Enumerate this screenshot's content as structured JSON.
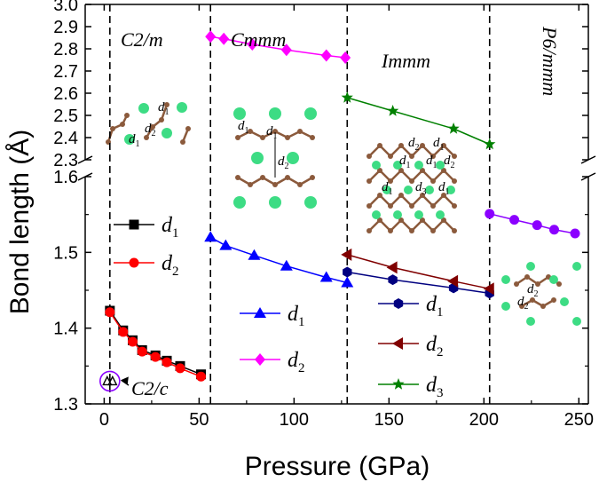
{
  "chart_data": {
    "type": "line",
    "xlabel": "Pressure (GPa)",
    "ylabel": "Bond length (Å)",
    "xlim": [
      -10,
      255
    ],
    "ylim_lower": [
      1.3,
      1.6
    ],
    "ylim_upper": [
      2.3,
      3.0
    ],
    "x_ticks": [
      "0",
      "50",
      "100",
      "150",
      "200",
      "250"
    ],
    "x_tick_values": [
      0,
      50,
      100,
      150,
      200,
      250
    ],
    "y_ticks_lower": [
      "1.3",
      "1.4",
      "1.5",
      "1.6"
    ],
    "y_tick_values_lower": [
      1.3,
      1.4,
      1.5,
      1.6
    ],
    "y_ticks_upper": [
      "2.3",
      "2.4",
      "2.5",
      "2.6",
      "2.7",
      "2.8",
      "2.9",
      "3.0"
    ],
    "y_tick_values_upper": [
      2.3,
      2.4,
      2.5,
      2.6,
      2.7,
      2.8,
      2.9,
      3.0
    ],
    "phase_boundaries": [
      3,
      56,
      128,
      203
    ],
    "phases": [
      {
        "label": "C2/m",
        "x": 22,
        "y": 2.92
      },
      {
        "label": "Cmmm",
        "x": 90,
        "y": 2.92
      },
      {
        "label": "Immm",
        "x": 163,
        "y": 2.72
      },
      {
        "label": "P6/mmm",
        "x": 230,
        "y": 2.9
      }
    ],
    "series": [
      {
        "name": "C2/m d1",
        "color": "#000000",
        "marker": "square",
        "x": [
          3,
          10,
          15,
          20,
          27,
          33,
          40,
          51
        ],
        "y": [
          1.423,
          1.397,
          1.384,
          1.371,
          1.364,
          1.357,
          1.35,
          1.339
        ]
      },
      {
        "name": "C2/m d2",
        "color": "#ff0000",
        "marker": "circle",
        "x": [
          3,
          10,
          15,
          20,
          27,
          33,
          40,
          51
        ],
        "y": [
          1.421,
          1.395,
          1.382,
          1.369,
          1.362,
          1.355,
          1.347,
          1.336
        ]
      },
      {
        "name": "Cmmm d1",
        "color": "#0000ff",
        "marker": "triangle",
        "x": [
          56,
          64,
          79,
          96,
          117,
          128
        ],
        "y": [
          1.52,
          1.509,
          1.496,
          1.482,
          1.467,
          1.46
        ]
      },
      {
        "name": "Cmmm d2",
        "color": "#ff00ff",
        "marker": "diamond",
        "x": [
          56,
          63,
          78,
          96,
          117,
          127
        ],
        "y": [
          2.855,
          2.845,
          2.82,
          2.795,
          2.77,
          2.76
        ]
      },
      {
        "name": "Immm d1",
        "color": "#000080",
        "marker": "hexagon",
        "x": [
          128,
          152,
          184,
          203
        ],
        "y": [
          1.474,
          1.464,
          1.453,
          1.446
        ]
      },
      {
        "name": "Immm d2",
        "color": "#800000",
        "marker": "lefttriangle",
        "x": [
          128,
          152,
          184,
          203
        ],
        "y": [
          1.497,
          1.48,
          1.462,
          1.452
        ]
      },
      {
        "name": "Immm d3",
        "color": "#008000",
        "marker": "star",
        "x": [
          128,
          152,
          184,
          203
        ],
        "y": [
          2.58,
          2.52,
          2.44,
          2.37
        ]
      },
      {
        "name": "P6/mmm d1",
        "color": "#8b00ff",
        "marker": "circle",
        "x": [
          203,
          216,
          228,
          237,
          248
        ],
        "y": [
          1.551,
          1.543,
          1.536,
          1.53,
          1.525
        ]
      }
    ],
    "c2c_marker": {
      "label": "C2/c",
      "x": 3,
      "y": 1.33
    },
    "legends": [
      {
        "group": "C2/m",
        "entries": [
          {
            "series": 0,
            "label": "d",
            "sub": "1"
          },
          {
            "series": 1,
            "label": "d",
            "sub": "2"
          }
        ]
      },
      {
        "group": "Cmmm",
        "entries": [
          {
            "series": 2,
            "label": "d",
            "sub": "1"
          },
          {
            "series": 3,
            "label": "d",
            "sub": "2"
          }
        ]
      },
      {
        "group": "Immm",
        "entries": [
          {
            "series": 4,
            "label": "d",
            "sub": "1"
          },
          {
            "series": 5,
            "label": "d",
            "sub": "2"
          },
          {
            "series": 6,
            "label": "d",
            "sub": "3"
          }
        ]
      }
    ],
    "atom_labels": [
      "d1",
      "d2",
      "d1",
      "d1",
      "d1",
      "d2",
      "d2",
      "d1",
      "d1",
      "d1",
      "d2",
      "d1",
      "d3",
      "d1",
      "d2",
      "d2",
      "d1",
      "d1"
    ]
  }
}
